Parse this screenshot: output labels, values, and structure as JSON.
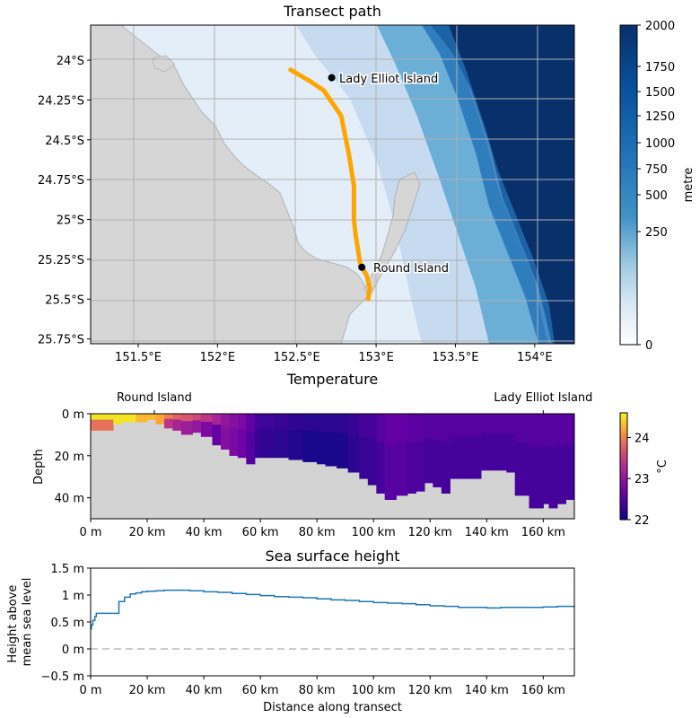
{
  "chart_data": [
    {
      "type": "heatmap",
      "title": "Transect path",
      "x_ticks": [
        "151.5°E",
        "152°E",
        "152.5°E",
        "153°E",
        "153.5°E",
        "154°E"
      ],
      "y_ticks": [
        "24°S",
        "24.25°S",
        "24.5°S",
        "24.75°S",
        "25°S",
        "25.25°S",
        "25.5°S",
        "25.75°S"
      ],
      "xlim": [
        151.2,
        154.25
      ],
      "ylim": [
        -25.78,
        -23.78
      ],
      "colorbar": {
        "label": "metre",
        "ticks": [
          "2000",
          "1750",
          "1500",
          "1250",
          "1000",
          "750",
          "500",
          "250",
          "0"
        ],
        "range": [
          0,
          2000
        ]
      },
      "transect_path": [
        [
          152.46,
          -24.06
        ],
        [
          152.58,
          -24.13
        ],
        [
          152.67,
          -24.19
        ],
        [
          152.78,
          -24.35
        ],
        [
          152.83,
          -24.6
        ],
        [
          152.86,
          -24.79
        ],
        [
          152.86,
          -25.0
        ],
        [
          152.87,
          -25.09
        ],
        [
          152.9,
          -25.28
        ],
        [
          152.94,
          -25.35
        ],
        [
          152.96,
          -25.43
        ],
        [
          152.95,
          -25.5
        ]
      ],
      "locations": [
        {
          "name": "Lady Elliot Island",
          "lon": 152.72,
          "lat": -24.11
        },
        {
          "name": "Round Island",
          "lon": 152.91,
          "lat": -25.3
        }
      ],
      "transect_color": "#ffa500"
    },
    {
      "type": "heatmap",
      "title": "Temperature",
      "ylabel": "Depth",
      "x_ticks": [
        "0 m",
        "20 km",
        "40 km",
        "60 km",
        "80 km",
        "100 km",
        "120 km",
        "140 km",
        "160 km"
      ],
      "y_ticks": [
        "0 m",
        "20 m",
        "40 m"
      ],
      "xlim": [
        0,
        171
      ],
      "ylim": [
        50,
        0
      ],
      "top_labels": [
        {
          "name": "Round Island",
          "x": 22.5
        },
        {
          "name": "Lady Elliot Island",
          "x": 160
        }
      ],
      "colorbar": {
        "label": "°C",
        "ticks": [
          "24",
          "23",
          "22"
        ],
        "range": [
          22,
          24.6
        ]
      },
      "columns": [
        {
          "x0": 0,
          "x1": 8,
          "bottom": 8,
          "top": 24.5
        },
        {
          "x0": 8,
          "x1": 11,
          "bottom": 5,
          "top": 24.5
        },
        {
          "x0": 11,
          "x1": 16,
          "bottom": 4,
          "top": 24.5
        },
        {
          "x0": 16,
          "x1": 20,
          "bottom": 4,
          "top": 24.3
        },
        {
          "x0": 20,
          "x1": 23,
          "bottom": 3,
          "top": 24.3
        },
        {
          "x0": 23,
          "x1": 26,
          "bottom": 5,
          "top": 24.2
        },
        {
          "x0": 26,
          "x1": 29,
          "bottom": 7,
          "top": 24.0
        },
        {
          "x0": 29,
          "x1": 32,
          "bottom": 8,
          "top": 23.8
        },
        {
          "x0": 32,
          "x1": 36,
          "bottom": 10,
          "top": 23.7
        },
        {
          "x0": 36,
          "x1": 39,
          "bottom": 9,
          "top": 23.6
        },
        {
          "x0": 39,
          "x1": 43,
          "bottom": 11,
          "top": 23.4
        },
        {
          "x0": 43,
          "x1": 46,
          "bottom": 15,
          "top": 23.2
        },
        {
          "x0": 46,
          "x1": 49,
          "bottom": 17,
          "top": 23.0
        },
        {
          "x0": 49,
          "x1": 52,
          "bottom": 20,
          "top": 22.9
        },
        {
          "x0": 52,
          "x1": 55,
          "bottom": 21,
          "top": 22.8
        },
        {
          "x0": 55,
          "x1": 58,
          "bottom": 24,
          "top": 22.6
        },
        {
          "x0": 58,
          "x1": 60,
          "bottom": 21,
          "top": 22.4
        },
        {
          "x0": 60,
          "x1": 65,
          "bottom": 21,
          "top": 22.35
        },
        {
          "x0": 65,
          "x1": 70,
          "bottom": 21,
          "top": 22.3
        },
        {
          "x0": 70,
          "x1": 75,
          "bottom": 22,
          "top": 22.25
        },
        {
          "x0": 75,
          "x1": 80,
          "bottom": 23,
          "top": 22.2
        },
        {
          "x0": 80,
          "x1": 83,
          "bottom": 24,
          "top": 22.2
        },
        {
          "x0": 83,
          "x1": 87,
          "bottom": 25,
          "top": 22.2
        },
        {
          "x0": 87,
          "x1": 91,
          "bottom": 26,
          "top": 22.2
        },
        {
          "x0": 91,
          "x1": 95,
          "bottom": 28,
          "top": 22.3
        },
        {
          "x0": 95,
          "x1": 98,
          "bottom": 31,
          "top": 22.4
        },
        {
          "x0": 98,
          "x1": 101,
          "bottom": 34,
          "top": 22.4
        },
        {
          "x0": 101,
          "x1": 104,
          "bottom": 38,
          "top": 22.5
        },
        {
          "x0": 104,
          "x1": 108,
          "bottom": 41,
          "top": 22.6
        },
        {
          "x0": 108,
          "x1": 112,
          "bottom": 39,
          "top": 22.6
        },
        {
          "x0": 112,
          "x1": 115,
          "bottom": 38,
          "top": 22.55
        },
        {
          "x0": 115,
          "x1": 118,
          "bottom": 37,
          "top": 22.55
        },
        {
          "x0": 118,
          "x1": 121,
          "bottom": 33,
          "top": 22.5
        },
        {
          "x0": 121,
          "x1": 124,
          "bottom": 35,
          "top": 22.5
        },
        {
          "x0": 124,
          "x1": 127,
          "bottom": 38,
          "top": 22.5
        },
        {
          "x0": 127,
          "x1": 131,
          "bottom": 31,
          "top": 22.5
        },
        {
          "x0": 131,
          "x1": 135,
          "bottom": 31,
          "top": 22.5
        },
        {
          "x0": 135,
          "x1": 138,
          "bottom": 31,
          "top": 22.5
        },
        {
          "x0": 138,
          "x1": 141,
          "bottom": 27,
          "top": 22.5
        },
        {
          "x0": 141,
          "x1": 144,
          "bottom": 27,
          "top": 22.5
        },
        {
          "x0": 144,
          "x1": 147,
          "bottom": 27,
          "top": 22.5
        },
        {
          "x0": 147,
          "x1": 150,
          "bottom": 28,
          "top": 22.5
        },
        {
          "x0": 150,
          "x1": 155,
          "bottom": 39,
          "top": 22.5
        },
        {
          "x0": 155,
          "x1": 160,
          "bottom": 45,
          "top": 22.5
        },
        {
          "x0": 160,
          "x1": 162,
          "bottom": 43,
          "top": 22.5
        },
        {
          "x0": 162,
          "x1": 165,
          "bottom": 45,
          "top": 22.5
        },
        {
          "x0": 165,
          "x1": 168,
          "bottom": 43,
          "top": 22.5
        },
        {
          "x0": 168,
          "x1": 171,
          "bottom": 41,
          "top": 22.5
        }
      ]
    },
    {
      "type": "line",
      "title": "Sea surface height",
      "xlabel": "Distance along transect",
      "ylabel": "Height above mean sea level",
      "ylabel_lines": [
        "Height above",
        "mean sea level"
      ],
      "x_ticks": [
        "0 m",
        "20 km",
        "40 km",
        "60 km",
        "80 km",
        "100 km",
        "120 km",
        "140 km",
        "160 km"
      ],
      "y_ticks": [
        "1.5 m",
        "1 m",
        "0.5 m",
        "0 m",
        "−0.5 m"
      ],
      "xlim": [
        0,
        171
      ],
      "ylim": [
        -0.5,
        1.5
      ],
      "reference_line": 0,
      "series_color": "#1f77b4",
      "x": [
        0,
        0.3,
        0.8,
        1.5,
        2,
        9,
        10,
        12,
        14,
        16,
        18,
        20,
        23,
        26,
        30,
        35,
        40,
        45,
        50,
        55,
        60,
        65,
        70,
        75,
        80,
        85,
        90,
        95,
        100,
        105,
        110,
        115,
        120,
        125,
        130,
        135,
        140,
        145,
        150,
        155,
        160,
        165,
        171
      ],
      "y": [
        0.37,
        0.45,
        0.53,
        0.6,
        0.66,
        0.66,
        0.88,
        0.96,
        1.02,
        1.04,
        1.06,
        1.07,
        1.08,
        1.09,
        1.09,
        1.08,
        1.06,
        1.05,
        1.03,
        1.01,
        0.99,
        0.97,
        0.96,
        0.95,
        0.93,
        0.91,
        0.9,
        0.88,
        0.86,
        0.85,
        0.84,
        0.82,
        0.8,
        0.79,
        0.77,
        0.77,
        0.76,
        0.77,
        0.77,
        0.77,
        0.78,
        0.79,
        0.8
      ]
    }
  ]
}
